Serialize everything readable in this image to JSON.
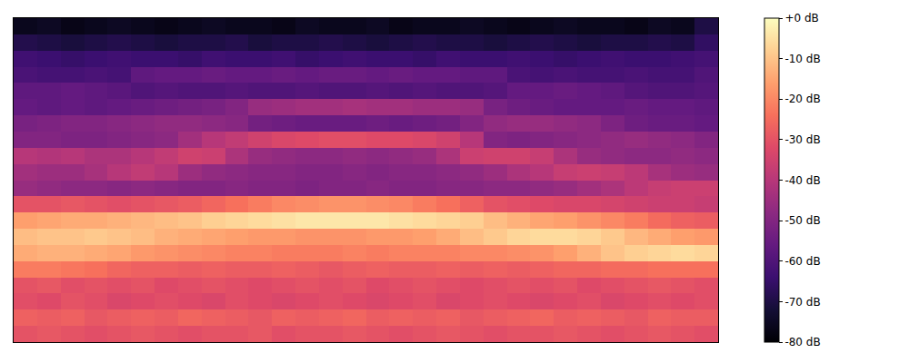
{
  "chart_data": {
    "type": "heatmap",
    "tick_labels": false,
    "cells": [
      [
        -76,
        -75,
        -77,
        -76,
        -75,
        -76,
        -77,
        -76,
        -75,
        -76,
        -76,
        -77,
        -75,
        -76,
        -76,
        -75,
        -77,
        -76,
        -76,
        -75,
        -76,
        -77,
        -76,
        -75,
        -76,
        -76,
        -77,
        -75,
        -76,
        -70
      ],
      [
        -69,
        -70,
        -71,
        -70,
        -69,
        -70,
        -71,
        -70,
        -70,
        -69,
        -71,
        -70,
        -70,
        -69,
        -70,
        -71,
        -70,
        -69,
        -70,
        -70,
        -71,
        -70,
        -69,
        -70,
        -71,
        -70,
        -70,
        -69,
        -70,
        -66
      ],
      [
        -63,
        -64,
        -65,
        -64,
        -63,
        -64,
        -64,
        -65,
        -63,
        -64,
        -64,
        -63,
        -65,
        -64,
        -63,
        -64,
        -64,
        -65,
        -63,
        -64,
        -64,
        -63,
        -64,
        -65,
        -64,
        -63,
        -64,
        -64,
        -63,
        -62
      ],
      [
        -61,
        -62,
        -62,
        -61,
        -62,
        -57,
        -56,
        -56,
        -55,
        -56,
        -56,
        -55,
        -56,
        -55,
        -55,
        -56,
        -55,
        -56,
        -56,
        -57,
        -57,
        -61,
        -62,
        -61,
        -62,
        -62,
        -61,
        -62,
        -62,
        -60
      ],
      [
        -57,
        -57,
        -56,
        -57,
        -58,
        -60,
        -59,
        -60,
        -60,
        -59,
        -60,
        -60,
        -59,
        -60,
        -60,
        -59,
        -60,
        -59,
        -60,
        -60,
        -59,
        -56,
        -56,
        -55,
        -56,
        -57,
        -59,
        -60,
        -60,
        -59
      ],
      [
        -56,
        -57,
        -56,
        -57,
        -56,
        -55,
        -54,
        -53,
        -52,
        -50,
        -46,
        -45,
        -44,
        -44,
        -43,
        -44,
        -44,
        -45,
        -45,
        -46,
        -52,
        -54,
        -55,
        -56,
        -56,
        -56,
        -55,
        -56,
        -56,
        -57
      ],
      [
        -52,
        -51,
        -50,
        -50,
        -49,
        -48,
        -47,
        -47,
        -48,
        -49,
        -53,
        -54,
        -55,
        -55,
        -55,
        -54,
        -55,
        -54,
        -53,
        -50,
        -47,
        -46,
        -46,
        -47,
        -48,
        -51,
        -54,
        -55,
        -55,
        -56
      ],
      [
        -50,
        -50,
        -51,
        -51,
        -50,
        -49,
        -48,
        -44,
        -40,
        -38,
        -35,
        -33,
        -32,
        -31,
        -31,
        -32,
        -32,
        -33,
        -35,
        -40,
        -50,
        -51,
        -50,
        -49,
        -48,
        -47,
        -46,
        -47,
        -48,
        -50
      ],
      [
        -40,
        -41,
        -40,
        -42,
        -42,
        -40,
        -38,
        -35,
        -36,
        -42,
        -46,
        -47,
        -48,
        -48,
        -47,
        -48,
        -47,
        -46,
        -42,
        -36,
        -35,
        -35,
        -37,
        -42,
        -46,
        -47,
        -48,
        -48,
        -47,
        -48
      ],
      [
        -44,
        -45,
        -45,
        -43,
        -40,
        -38,
        -40,
        -45,
        -47,
        -48,
        -49,
        -49,
        -50,
        -50,
        -49,
        -50,
        -49,
        -49,
        -48,
        -47,
        -45,
        -42,
        -40,
        -37,
        -36,
        -37,
        -39,
        -43,
        -45,
        -46
      ],
      [
        -46,
        -47,
        -48,
        -48,
        -49,
        -48,
        -49,
        -50,
        -50,
        -49,
        -50,
        -50,
        -51,
        -50,
        -50,
        -49,
        -50,
        -50,
        -49,
        -49,
        -48,
        -48,
        -47,
        -46,
        -44,
        -42,
        -39,
        -37,
        -36,
        -36
      ],
      [
        -30,
        -30,
        -29,
        -30,
        -31,
        -30,
        -29,
        -28,
        -26,
        -24,
        -22,
        -20,
        -19,
        -18,
        -18,
        -19,
        -20,
        -22,
        -24,
        -27,
        -30,
        -31,
        -32,
        -33,
        -33,
        -34,
        -35,
        -36,
        -36,
        -37
      ],
      [
        -16,
        -15,
        -14,
        -14,
        -13,
        -12,
        -11,
        -10,
        -8,
        -7,
        -6,
        -5,
        -4,
        -4,
        -4,
        -4,
        -5,
        -6,
        -7,
        -8,
        -11,
        -13,
        -15,
        -16,
        -18,
        -20,
        -22,
        -25,
        -27,
        -28
      ],
      [
        -11,
        -10,
        -10,
        -9,
        -10,
        -11,
        -13,
        -14,
        -15,
        -16,
        -17,
        -17,
        -18,
        -18,
        -18,
        -17,
        -17,
        -16,
        -14,
        -11,
        -9,
        -7,
        -6,
        -6,
        -7,
        -9,
        -12,
        -14,
        -16,
        -17
      ],
      [
        -14,
        -13,
        -13,
        -14,
        -15,
        -17,
        -18,
        -19,
        -20,
        -21,
        -21,
        -22,
        -22,
        -22,
        -21,
        -22,
        -21,
        -21,
        -21,
        -20,
        -20,
        -19,
        -18,
        -16,
        -13,
        -10,
        -8,
        -7,
        -6,
        -7
      ],
      [
        -22,
        -22,
        -23,
        -24,
        -26,
        -27,
        -27,
        -28,
        -27,
        -28,
        -28,
        -27,
        -28,
        -29,
        -28,
        -27,
        -28,
        -28,
        -27,
        -28,
        -27,
        -28,
        -27,
        -26,
        -26,
        -25,
        -25,
        -24,
        -24,
        -24
      ],
      [
        -30,
        -29,
        -31,
        -30,
        -31,
        -30,
        -32,
        -31,
        -30,
        -31,
        -32,
        -31,
        -30,
        -31,
        -30,
        -32,
        -31,
        -30,
        -31,
        -32,
        -31,
        -30,
        -31,
        -30,
        -32,
        -31,
        -30,
        -29,
        -30,
        -31
      ],
      [
        -31,
        -32,
        -30,
        -31,
        -33,
        -32,
        -31,
        -32,
        -33,
        -31,
        -32,
        -33,
        -32,
        -31,
        -32,
        -33,
        -32,
        -31,
        -33,
        -32,
        -31,
        -32,
        -33,
        -32,
        -31,
        -33,
        -32,
        -31,
        -32,
        -31
      ],
      [
        -27,
        -28,
        -27,
        -29,
        -28,
        -27,
        -28,
        -26,
        -27,
        -28,
        -29,
        -27,
        -28,
        -27,
        -26,
        -28,
        -27,
        -28,
        -27,
        -29,
        -28,
        -27,
        -26,
        -28,
        -27,
        -28,
        -29,
        -27,
        -28,
        -28
      ],
      [
        -30,
        -29,
        -30,
        -31,
        -30,
        -29,
        -30,
        -31,
        -30,
        -30,
        -29,
        -31,
        -30,
        -30,
        -29,
        -30,
        -31,
        -30,
        -29,
        -30,
        -31,
        -30,
        -30,
        -29,
        -30,
        -31,
        -30,
        -29,
        -30,
        -31
      ]
    ],
    "colorbar": {
      "range": [
        -80,
        0
      ],
      "ticks": [
        {
          "value": 0,
          "label": "+0 dB"
        },
        {
          "value": -10,
          "label": "-10 dB"
        },
        {
          "value": -20,
          "label": "-20 dB"
        },
        {
          "value": -30,
          "label": "-30 dB"
        },
        {
          "value": -40,
          "label": "-40 dB"
        },
        {
          "value": -50,
          "label": "-50 dB"
        },
        {
          "value": -60,
          "label": "-60 dB"
        },
        {
          "value": -70,
          "label": "-70 dB"
        },
        {
          "value": -80,
          "label": "-80 dB"
        }
      ]
    }
  }
}
